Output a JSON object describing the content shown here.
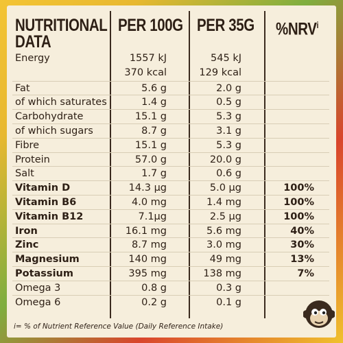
{
  "header": {
    "title": [
      "NUTRITIONAL",
      "DATA"
    ],
    "per100": "PER 100G",
    "per35": "PER 35G",
    "nrv": "%NRV",
    "nrv_mark": "i"
  },
  "rows": [
    {
      "label": "Energy",
      "per100": "1557 kJ",
      "per35": "545 kJ"
    },
    {
      "per100": "370 kcal",
      "per35": "129 kcal"
    },
    {
      "label": "Fat",
      "per100": "5.6 g",
      "per35": "2.0 g"
    },
    {
      "label": "of which saturates",
      "per100": "1.4 g",
      "per35": "0.5 g"
    },
    {
      "label": "Carbohydrate",
      "per100": "15.1 g",
      "per35": "5.3 g"
    },
    {
      "label": "of which sugars",
      "per100": "8.7 g",
      "per35": "3.1 g"
    },
    {
      "label": "Fibre",
      "per100": "15.1 g",
      "per35": "5.3 g"
    },
    {
      "label": "Protein",
      "per100": "57.0 g",
      "per35": "20.0 g"
    },
    {
      "label": "Salt",
      "per100": "1.7 g",
      "per35": "0.6 g"
    },
    {
      "label": "Vitamin D",
      "per100": "14.3 µg",
      "per35": "5.0 µg",
      "nrv": "100%",
      "bold": true
    },
    {
      "label": "Vitamin B6",
      "per100": "4.0 mg",
      "per35": "1.4 mg",
      "nrv": "100%",
      "bold": true
    },
    {
      "label": "Vitamin B12",
      "per100": "7.1µg",
      "per35": "2.5 µg",
      "nrv": "100%",
      "bold": true
    },
    {
      "label": "Iron",
      "per100": "16.1 mg",
      "per35": "5.6 mg",
      "nrv": "40%",
      "bold": true
    },
    {
      "label": "Zinc",
      "per100": "8.7 mg",
      "per35": "3.0 mg",
      "nrv": "30%",
      "bold": true
    },
    {
      "label": "Magnesium",
      "per100": "140 mg",
      "per35": "49 mg",
      "nrv": "13%",
      "bold": true
    },
    {
      "label": "Potassium",
      "per100": "395 mg",
      "per35": "138 mg",
      "nrv": "7%",
      "bold": true
    },
    {
      "label": "Omega 3",
      "per100": "0.8 g",
      "per35": "0.3 g"
    },
    {
      "label": "Omega 6",
      "per100": "0.2 g",
      "per35": "0.1 g"
    }
  ],
  "footnote": "i= % of Nutrient Reference Value (Daily Reference Intake)"
}
